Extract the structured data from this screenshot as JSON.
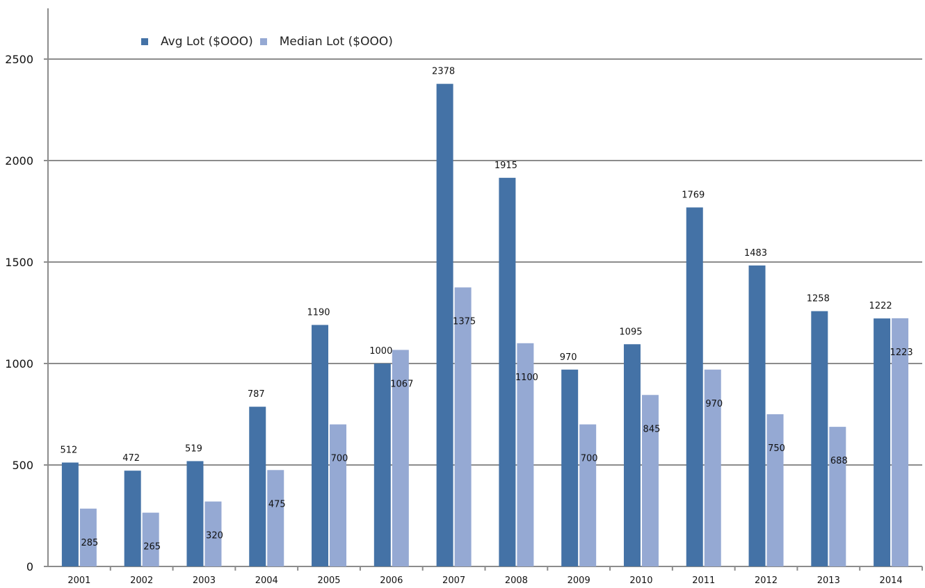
{
  "chart_data": {
    "type": "bar",
    "categories": [
      "2001",
      "2002",
      "2003",
      "2004",
      "2005",
      "2006",
      "2007",
      "2008",
      "2009",
      "2010",
      "2011",
      "2012",
      "2013",
      "2014"
    ],
    "series": [
      {
        "name": "Avg Lot ($OOO)",
        "color": "#4472a6",
        "values": [
          512,
          472,
          519,
          787,
          1190,
          1000,
          2378,
          1915,
          970,
          1095,
          1769,
          1483,
          1258,
          1222
        ]
      },
      {
        "name": "Median Lot ($OOO)",
        "color": "#95a9d3",
        "values": [
          285,
          265,
          320,
          475,
          700,
          1067,
          1375,
          1100,
          700,
          845,
          970,
          750,
          688,
          1223
        ]
      }
    ],
    "ylim": [
      0,
      2750
    ],
    "yticks": [
      0,
      500,
      1000,
      1500,
      2000,
      2500
    ],
    "grid": true,
    "legend_position": "top-left"
  }
}
